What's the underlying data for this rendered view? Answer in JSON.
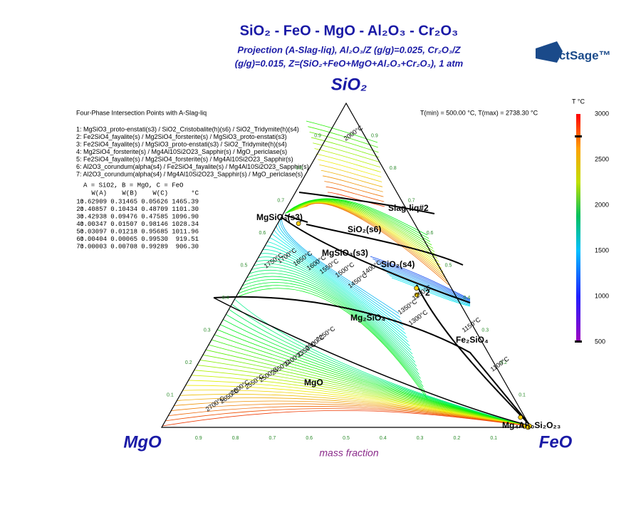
{
  "header": {
    "title": "SiO₂ - FeO - MgO - Al₂O₃ - Cr₂O₃",
    "subtitle_line1": "Projection (A-Slag-liq), Al₂O₃/Z (g/g)=0.025, Cr₂O₃/Z",
    "subtitle_line2": "(g/g)=0.015, Z=(SiO₂+FeO+MgO+Al₂O₃+Cr₂O₃), 1 atm",
    "logo": "FactSage™"
  },
  "corners": {
    "top": "SiO₂",
    "left": "MgO",
    "right": "FeO"
  },
  "axis_label": "mass fraction",
  "axis_ticks": [
    "0.9",
    "0.8",
    "0.7",
    "0.6",
    "0.5",
    "0.4",
    "0.3",
    "0.2",
    "0.1"
  ],
  "legend": {
    "title": "Four-Phase Intersection Points with A-Slag-liq",
    "trange": "T(min) = 500.00 °C, T(max) = 2738.30 °C",
    "items": [
      "1:  MgSiO3_proto-enstati(s3) / SiO2_Cristobalite(h)(s6) / SiO2_Tridymite(h)(s4)",
      "2:  Fe2SiO4_fayalite(s) / Mg2SiO4_forsterite(s) / MgSiO3_proto-enstati(s3)",
      "3:  Fe2SiO4_fayalite(s) / MgSiO3_proto-enstati(s3) / SiO2_Tridymite(h)(s4)",
      "4:  Mg2SiO4_forsterite(s) / Mg4Al10Si2O23_Sapphir(s) / MgO_periclase(s)",
      "5:  Fe2SiO4_fayalite(s) / Mg2SiO4_forsterite(s) / Mg4Al10Si2O23_Sapphir(s)",
      "6:  Al2O3_corundum(alpha(s4) / Fe2SiO4_fayalite(s) / Mg4Al10Si2O23_Sapphir(s)",
      "7:  Al2O3_corundum(alpha(s4) / Mg4Al10Si2O23_Sapphir(s) / MgO_periclase(s)"
    ]
  },
  "table": {
    "caption": "A = SiO2,  B = MgO,  C = FeO",
    "header": [
      "W(A)",
      "W(B)",
      "W(C)",
      "°C"
    ],
    "rows": [
      [
        "1:",
        "0.62909",
        "0.31465",
        "0.05626",
        "1465.39"
      ],
      [
        "2:",
        "0.40857",
        "0.10434",
        "0.48709",
        "1101.30"
      ],
      [
        "3:",
        "0.42938",
        "0.09476",
        "0.47585",
        "1096.90"
      ],
      [
        "4:",
        "0.00347",
        "0.01507",
        "0.98146",
        "1028.34"
      ],
      [
        "5:",
        "0.03097",
        "0.01218",
        "0.95685",
        "1011.96"
      ],
      [
        "6:",
        "0.00404",
        "0.00065",
        "0.99530",
        "919.51"
      ],
      [
        "7:",
        "0.00003",
        "0.00708",
        "0.99289",
        "906.30"
      ]
    ]
  },
  "colorbar": {
    "title": "T °C",
    "ticks": [
      "3000",
      "2500",
      "2000",
      "1500",
      "1000",
      "500"
    ]
  },
  "phase_labels": [
    "Slag-liq#2",
    "SiO₂(s6)",
    "MgSiO₃(s3)",
    "MgSiO₃(s3)",
    "SiO₂(s4)",
    "Mg₂SiO₄",
    "Fe₂SiO₄",
    "MgO",
    "Mg₄Al₁₀Si₂O₂₃",
    "2"
  ],
  "isotherm_labels": [
    "2000°C",
    "1750°C",
    "1700°C",
    "1650°C",
    "1600°C",
    "1550°C",
    "1500°C",
    "1450°C",
    "1400°C",
    "1350°C",
    "1300°C",
    "1250°C",
    "1150°C",
    "1100°C",
    "2700°C",
    "2650°C",
    "2600°C",
    "2550°C",
    "2500°C",
    "2450°C",
    "2400°C",
    "2350°C",
    "2300°C",
    "2250°C"
  ]
}
